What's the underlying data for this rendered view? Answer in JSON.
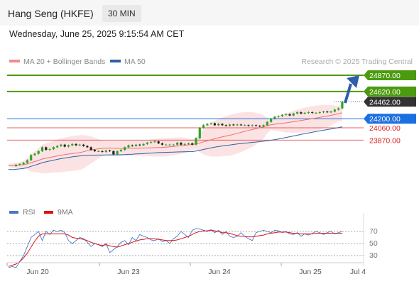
{
  "header": {
    "instrument": "Hang Seng (HKFE)",
    "interval": "30 MIN",
    "datetime": "Wednesday, June 25, 2025 9:15:54 AM CET"
  },
  "legend": {
    "ma20": {
      "label": "MA 20 + Bollinger Bands",
      "color": "#f08c8c"
    },
    "ma50": {
      "label": "MA 50",
      "color": "#2f5fa8"
    },
    "credit": "Research © 2025 Trading Central"
  },
  "levels": [
    {
      "label": "24870.00",
      "value": 24870,
      "kind": "resistance",
      "color": "#4c9a0f"
    },
    {
      "label": "24620.00",
      "value": 24620,
      "kind": "resistance",
      "color": "#4c9a0f"
    },
    {
      "label": "24462.00",
      "value": 24462,
      "kind": "last",
      "color": "#333333"
    },
    {
      "label": "24200.00",
      "value": 24200,
      "kind": "pivot",
      "color": "#1c6fe0"
    },
    {
      "label": "24060.00",
      "value": 24060,
      "kind": "support",
      "color": "#dd2222"
    },
    {
      "label": "23870.00",
      "value": 23870,
      "kind": "support",
      "color": "#dd2222"
    }
  ],
  "rsi_legend": {
    "rsi": {
      "label": "RSI",
      "color": "#4a78c8"
    },
    "ma9": {
      "label": "9MA",
      "color": "#dd1111"
    }
  },
  "rsi_levels": [
    "70",
    "50",
    "30"
  ],
  "x_ticks": [
    "Jun 20",
    "Jun 23",
    "Jun 24",
    "Jun 25",
    "Jul 4"
  ],
  "chart_data": {
    "type": "candlestick",
    "y_range": [
      23350,
      24950
    ],
    "closes": [
      23480,
      23470,
      23490,
      23500,
      23520,
      23560,
      23640,
      23660,
      23700,
      23760,
      23720,
      23730,
      23760,
      23780,
      23800,
      23770,
      23790,
      23810,
      23790,
      23800,
      23780,
      23760,
      23720,
      23700,
      23700,
      23690,
      23710,
      23700,
      23650,
      23700,
      23720,
      23760,
      23790,
      23780,
      23800,
      23790,
      23810,
      23830,
      23840,
      23850,
      23820,
      23800,
      23800,
      23800,
      23800,
      23830,
      23800,
      23810,
      23820,
      23800,
      23900,
      24060,
      24100,
      24120,
      24130,
      24100,
      24120,
      24100,
      24090,
      24110,
      24100,
      24110,
      24100,
      24100,
      24090,
      24100,
      24090,
      24080,
      24100,
      24150,
      24200,
      24230,
      24240,
      24260,
      24270,
      24250,
      24280,
      24300,
      24280,
      24290,
      24300,
      24290,
      24290,
      24300,
      24310,
      24300,
      24310,
      24340,
      24360,
      24462
    ],
    "candle_start_index": 2,
    "annotation": "projected arrow up toward 24870.00",
    "rsi": [
      10,
      12,
      10,
      20,
      30,
      45,
      60,
      65,
      70,
      55,
      70,
      65,
      72,
      70,
      72,
      68,
      55,
      50,
      55,
      60,
      58,
      52,
      45,
      50,
      48,
      45,
      50,
      35,
      40,
      45,
      52,
      55,
      48,
      60,
      55,
      65,
      62,
      60,
      56,
      55,
      58,
      53,
      55,
      50,
      58,
      62,
      70,
      65,
      60,
      72,
      75,
      74,
      72,
      70,
      73,
      68,
      72,
      65,
      70,
      62,
      60,
      62,
      68,
      62,
      58,
      55,
      68,
      70,
      72,
      70,
      68,
      72,
      71,
      68,
      70,
      66,
      65,
      68,
      62,
      66,
      64,
      67,
      70,
      68,
      65,
      68,
      70,
      66,
      68,
      70
    ],
    "rsi_ma9": [
      12,
      14,
      16,
      20,
      26,
      34,
      44,
      54,
      62,
      66,
      66,
      66,
      66,
      66,
      66,
      66,
      64,
      60,
      59,
      58,
      57,
      55,
      52,
      50,
      48,
      47,
      48,
      46,
      45,
      44,
      46,
      48,
      50,
      52,
      54,
      56,
      57,
      58,
      58,
      58,
      57,
      56,
      55,
      55,
      55,
      56,
      58,
      60,
      62,
      65,
      68,
      70,
      71,
      71,
      72,
      71,
      70,
      68,
      68,
      67,
      65,
      63,
      62,
      62,
      61,
      61,
      62,
      63,
      64,
      66,
      67,
      68,
      69,
      69,
      69,
      68,
      67,
      67,
      66,
      66,
      66,
      66,
      67,
      67,
      67,
      67,
      67,
      67,
      67,
      67
    ],
    "rsi_range": [
      0,
      100
    ],
    "x_tick_labels": [
      "Jun 20",
      "Jun 23",
      "Jun 24",
      "Jun 25",
      "Jul 4"
    ]
  }
}
